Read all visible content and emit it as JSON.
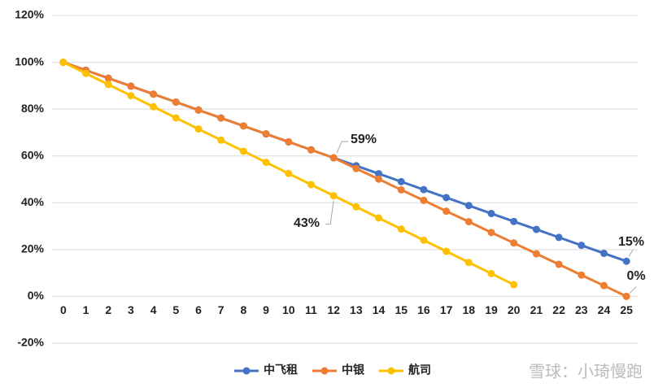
{
  "chart_data": {
    "type": "line",
    "x": [
      0,
      1,
      2,
      3,
      4,
      5,
      6,
      7,
      8,
      9,
      10,
      11,
      12,
      13,
      14,
      15,
      16,
      17,
      18,
      19,
      20,
      21,
      22,
      23,
      24,
      25
    ],
    "xlim": [
      -0.5,
      25.5
    ],
    "xticks": [
      0,
      1,
      2,
      3,
      4,
      5,
      6,
      7,
      8,
      9,
      10,
      11,
      12,
      13,
      14,
      15,
      16,
      17,
      18,
      19,
      20,
      21,
      22,
      23,
      24,
      25
    ],
    "ylim": [
      -20,
      120
    ],
    "yticks": [
      {
        "value": -20,
        "label": "-20%"
      },
      {
        "value": 0,
        "label": "0%"
      },
      {
        "value": 20,
        "label": "20%"
      },
      {
        "value": 40,
        "label": "40%"
      },
      {
        "value": 60,
        "label": "60%"
      },
      {
        "value": 80,
        "label": "80%"
      },
      {
        "value": 100,
        "label": "100%"
      },
      {
        "value": 120,
        "label": "120%"
      }
    ],
    "grid": true,
    "legend": "bottom",
    "series": [
      {
        "name": "中飞租",
        "color": "#4472c4",
        "values": [
          100,
          96.6,
          93.2,
          89.8,
          86.4,
          83,
          79.6,
          76.2,
          72.8,
          69.4,
          66,
          62.6,
          59.2,
          55.8,
          52.4,
          49,
          45.6,
          42.2,
          38.8,
          35.4,
          32,
          28.6,
          25.2,
          21.8,
          18.4,
          15
        ],
        "value_labels": [
          null,
          null,
          null,
          null,
          null,
          null,
          null,
          null,
          null,
          null,
          null,
          null,
          "59%",
          null,
          null,
          null,
          null,
          null,
          null,
          null,
          null,
          null,
          null,
          null,
          null,
          "15%"
        ]
      },
      {
        "name": "中银",
        "color": "#ed7d31",
        "values": [
          100,
          96.6,
          93.2,
          89.8,
          86.4,
          83,
          79.6,
          76.2,
          72.8,
          69.4,
          66,
          62.6,
          59.2,
          54.6,
          50.1,
          45.5,
          41,
          36.4,
          31.9,
          27.3,
          22.8,
          18.2,
          13.7,
          9.1,
          4.6,
          0
        ],
        "value_labels": [
          null,
          null,
          null,
          null,
          null,
          null,
          null,
          null,
          null,
          null,
          null,
          null,
          null,
          null,
          null,
          null,
          null,
          null,
          null,
          null,
          null,
          null,
          null,
          null,
          null,
          "0%"
        ]
      },
      {
        "name": "航司",
        "color": "#ffc000",
        "values": [
          100,
          95.25,
          90.5,
          85.75,
          81,
          76.25,
          71.5,
          66.75,
          62,
          57.25,
          52.5,
          47.75,
          43,
          38.25,
          33.5,
          28.75,
          24,
          19.25,
          14.5,
          9.75,
          5,
          null,
          null,
          null,
          null,
          null
        ],
        "value_labels": [
          null,
          null,
          null,
          null,
          null,
          null,
          null,
          null,
          null,
          null,
          null,
          null,
          "43%",
          null,
          null,
          null,
          null,
          null,
          null,
          null,
          null,
          null,
          null,
          null,
          null,
          null
        ]
      }
    ],
    "watermark": "雪球：小琦慢跑"
  }
}
